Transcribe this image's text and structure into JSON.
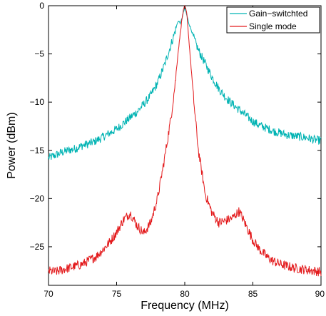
{
  "chart_data": {
    "type": "line",
    "title": "",
    "xlabel": "Frequency (MHz)",
    "ylabel": "Power (dBm)",
    "xlim": [
      70,
      90
    ],
    "ylim": [
      -29,
      0
    ],
    "x_ticks": [
      70,
      75,
      80,
      85,
      90
    ],
    "y_ticks": [
      0,
      -5,
      -10,
      -15,
      -20,
      -25
    ],
    "x_tick_labels": [
      "70",
      "75",
      "80",
      "85",
      "90"
    ],
    "y_tick_labels": [
      "0",
      "−5",
      "−10",
      "−15",
      "−20",
      "−25"
    ],
    "grid": false,
    "legend_position": "top-right",
    "series": [
      {
        "name": "Gain−switchted",
        "color": "#00b3b3",
        "x": [
          70,
          70.5,
          71,
          71.5,
          72,
          72.5,
          73,
          73.5,
          74,
          74.5,
          75,
          75.5,
          76,
          76.5,
          77,
          77.5,
          78,
          78.5,
          79,
          79.3,
          79.5,
          79.7,
          80,
          80.3,
          80.5,
          80.7,
          81,
          81.5,
          82,
          82.5,
          83,
          83.5,
          84,
          84.5,
          85,
          85.5,
          86,
          86.5,
          87,
          87.5,
          88,
          88.5,
          89,
          89.5,
          90
        ],
        "y": [
          -15.8,
          -15.5,
          -15.2,
          -15.0,
          -14.8,
          -14.5,
          -14.3,
          -14.0,
          -13.6,
          -13.2,
          -12.8,
          -12.2,
          -11.6,
          -11.0,
          -10.2,
          -9.3,
          -8.0,
          -6.2,
          -4.0,
          -2.6,
          -1.6,
          -1.8,
          -0.2,
          -1.8,
          -2.6,
          -3.5,
          -4.6,
          -6.0,
          -7.4,
          -8.6,
          -9.5,
          -10.2,
          -10.8,
          -11.4,
          -12.0,
          -12.4,
          -12.7,
          -13.0,
          -13.2,
          -13.4,
          -13.5,
          -13.6,
          -13.7,
          -13.9,
          -14.0
        ]
      },
      {
        "name": "Single mode",
        "color": "#e31a1c",
        "x": [
          70,
          70.5,
          71,
          71.5,
          72,
          72.5,
          73,
          73.5,
          74,
          74.5,
          75,
          75.5,
          76,
          76.5,
          77,
          77.5,
          78,
          78.5,
          79,
          79.3,
          79.5,
          79.7,
          79.85,
          80,
          80.15,
          80.3,
          80.5,
          80.7,
          81,
          81.5,
          82,
          82.5,
          83,
          83.5,
          84,
          84.5,
          85,
          85.5,
          86,
          86.5,
          87,
          87.5,
          88,
          88.5,
          89,
          89.5,
          90
        ],
        "y": [
          -27.5,
          -27.6,
          -27.4,
          -27.2,
          -27.0,
          -26.8,
          -26.4,
          -26.0,
          -25.3,
          -24.5,
          -23.5,
          -22.2,
          -21.5,
          -22.8,
          -23.6,
          -22.5,
          -20.0,
          -16.0,
          -11.5,
          -8.0,
          -5.0,
          -2.5,
          -0.8,
          0,
          -0.8,
          -3.5,
          -7.0,
          -10.5,
          -15.0,
          -19.5,
          -21.5,
          -22.5,
          -22.3,
          -22.0,
          -21.3,
          -22.8,
          -24.3,
          -25.3,
          -26.0,
          -26.5,
          -26.8,
          -27.0,
          -27.2,
          -27.3,
          -27.4,
          -27.5,
          -27.6
        ]
      }
    ]
  }
}
